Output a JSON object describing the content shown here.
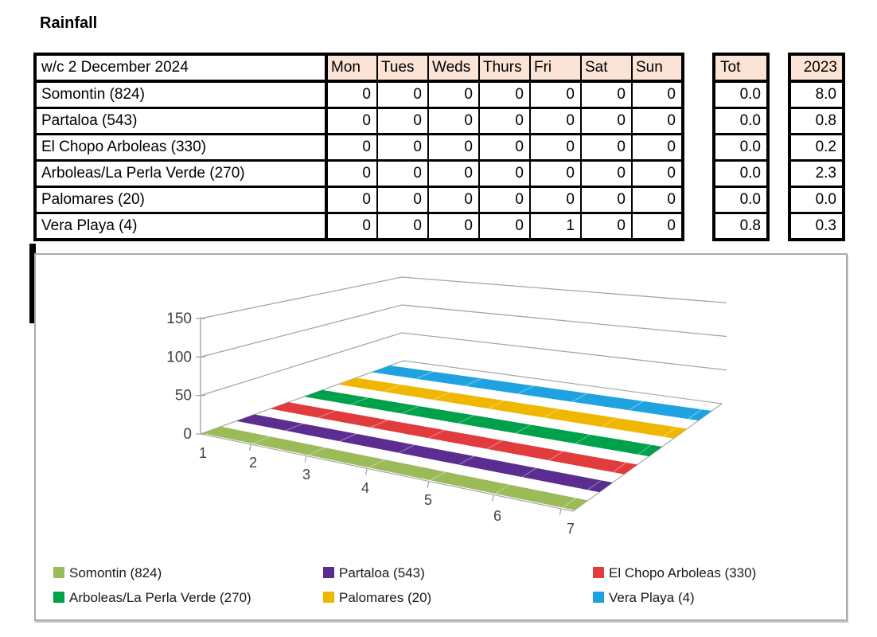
{
  "page": {
    "title": "Rainfall"
  },
  "table": {
    "week_header": "w/c 2 December 2024",
    "days": [
      "Mon",
      "Tues",
      "Weds",
      "Thurs",
      "Fri",
      "Sat",
      "Sun"
    ],
    "tot_label": "Tot",
    "year_label": "2023",
    "header_bg": "#fbe3d6",
    "rows": [
      {
        "name": "Somontin (824)",
        "days": [
          "0",
          "0",
          "0",
          "0",
          "0",
          "0",
          "0"
        ],
        "tot": "0.0",
        "year": "8.0"
      },
      {
        "name": "Partaloa (543)",
        "days": [
          "0",
          "0",
          "0",
          "0",
          "0",
          "0",
          "0"
        ],
        "tot": "0.0",
        "year": "0.8"
      },
      {
        "name": "El Chopo Arboleas (330)",
        "days": [
          "0",
          "0",
          "0",
          "0",
          "0",
          "0",
          "0"
        ],
        "tot": "0.0",
        "year": "0.2"
      },
      {
        "name": "Arboleas/La Perla Verde (270)",
        "days": [
          "0",
          "0",
          "0",
          "0",
          "0",
          "0",
          "0"
        ],
        "tot": "0.0",
        "year": "2.3"
      },
      {
        "name": "Palomares (20)",
        "days": [
          "0",
          "0",
          "0",
          "0",
          "0",
          "0",
          "0"
        ],
        "tot": "0.0",
        "year": "0.0"
      },
      {
        "name": "Vera Playa (4)",
        "days": [
          "0",
          "0",
          "0",
          "0",
          "1",
          "0",
          "0"
        ],
        "tot": "0.8",
        "year": "0.3"
      }
    ]
  },
  "chart_data": {
    "type": "line",
    "subtype": "3d-ribbon-floor",
    "x": [
      1,
      2,
      3,
      4,
      5,
      6,
      7
    ],
    "series": [
      {
        "name": "Somontin (824)",
        "color": "#9bbb59",
        "values": [
          0,
          0,
          0,
          0,
          0,
          0,
          0
        ]
      },
      {
        "name": "Partaloa (543)",
        "color": "#5c2d91",
        "values": [
          0,
          0,
          0,
          0,
          0,
          0,
          0
        ]
      },
      {
        "name": "El Chopo Arboleas (330)",
        "color": "#e23b3d",
        "values": [
          0,
          0,
          0,
          0,
          0,
          0,
          0
        ]
      },
      {
        "name": "Arboleas/La Perla Verde (270)",
        "color": "#00a14b",
        "values": [
          0,
          0,
          0,
          0,
          0,
          0,
          0
        ]
      },
      {
        "name": "Palomares (20)",
        "color": "#efb700",
        "values": [
          0,
          0,
          0,
          0,
          0,
          0,
          0
        ]
      },
      {
        "name": "Vera Playa (4)",
        "color": "#1fa3e0",
        "values": [
          0,
          0,
          0,
          0,
          1,
          0,
          0
        ]
      }
    ],
    "ylim": [
      0,
      150
    ],
    "yticks": [
      0,
      50,
      100,
      150
    ],
    "grid": true,
    "legend_position": "bottom",
    "axis_color": "#a6a6a6",
    "label_color": "#404040"
  }
}
